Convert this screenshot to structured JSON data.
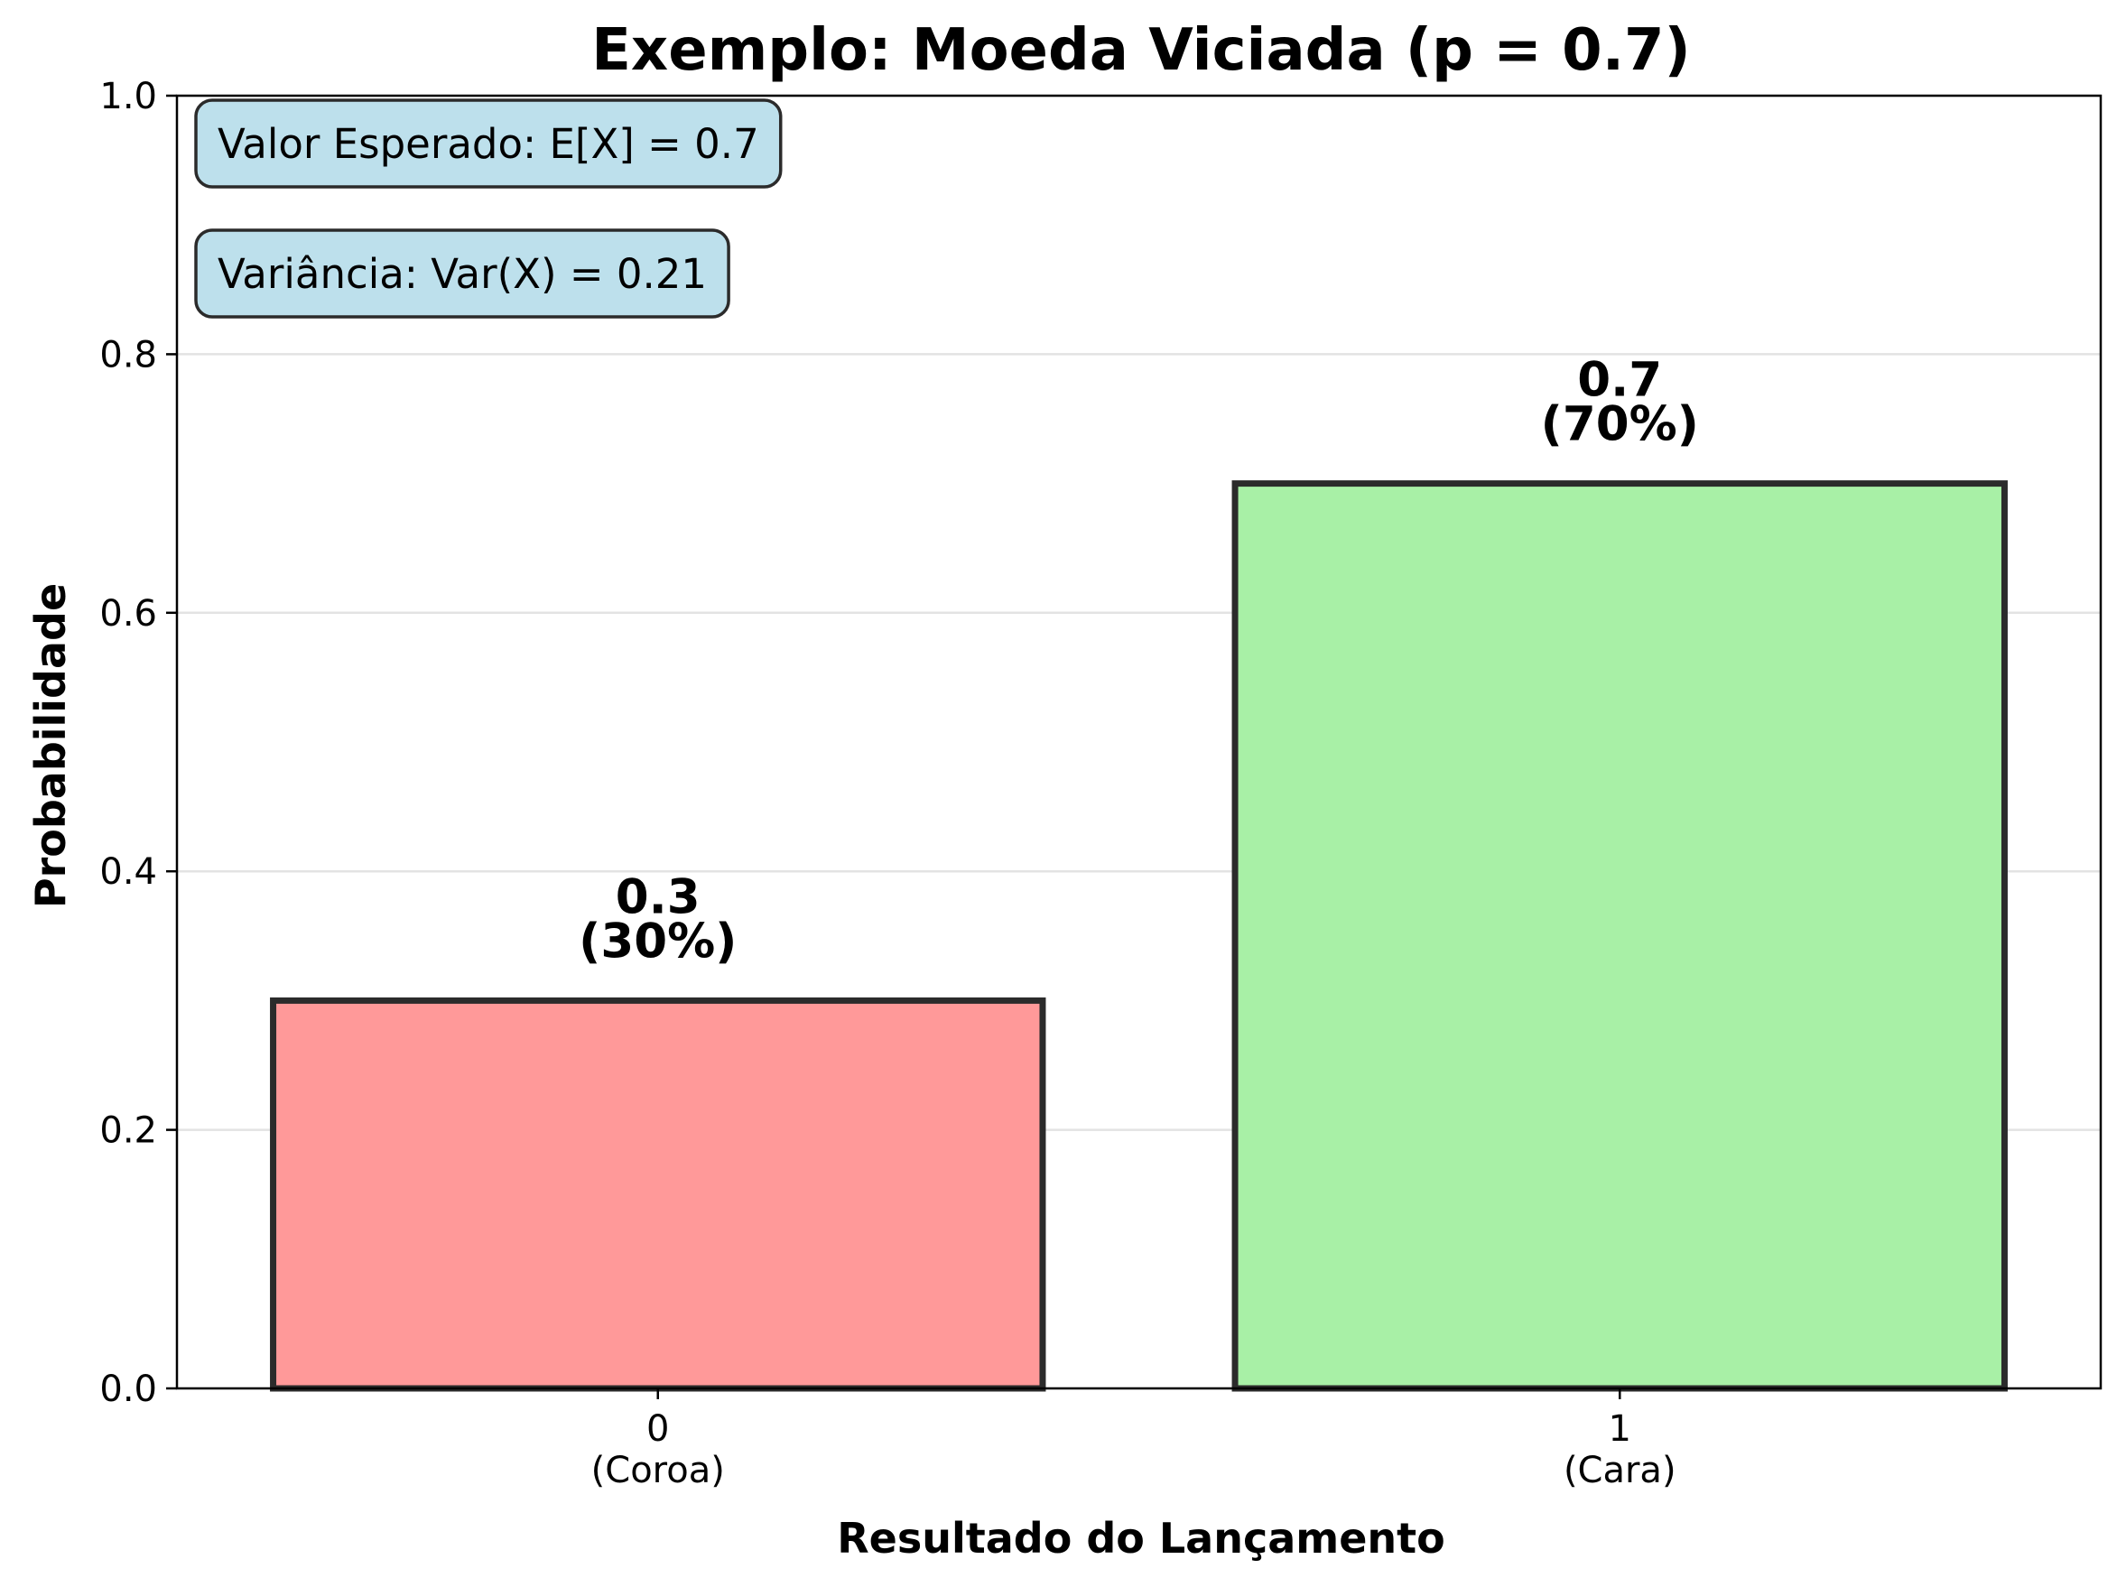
{
  "chart_data": {
    "type": "bar",
    "title": "Exemplo: Moeda Viciada (p = 0.7)",
    "xlabel": "Resultado do Lançamento",
    "ylabel": "Probabilidade",
    "ylim": [
      0,
      1.0
    ],
    "yticks": [
      "0.0",
      "0.2",
      "0.4",
      "0.6",
      "0.8",
      "1.0"
    ],
    "grid": "horizontal",
    "categories": [
      {
        "value": "0",
        "sublabel": "(Coroa)"
      },
      {
        "value": "1",
        "sublabel": "(Cara)"
      }
    ],
    "values": [
      0.3,
      0.7
    ],
    "bar_labels": [
      {
        "value": "0.3",
        "percent": "(30%)"
      },
      {
        "value": "0.7",
        "percent": "(70%)"
      }
    ],
    "colors": [
      "#ff9999",
      "#a8f0a6"
    ],
    "edge_color": "#2b2b2b",
    "annotations": [
      "Valor Esperado: E[X] = 0.7",
      "Variância: Var(X) = 0.21"
    ],
    "annotation_color": "#bde0ec"
  }
}
